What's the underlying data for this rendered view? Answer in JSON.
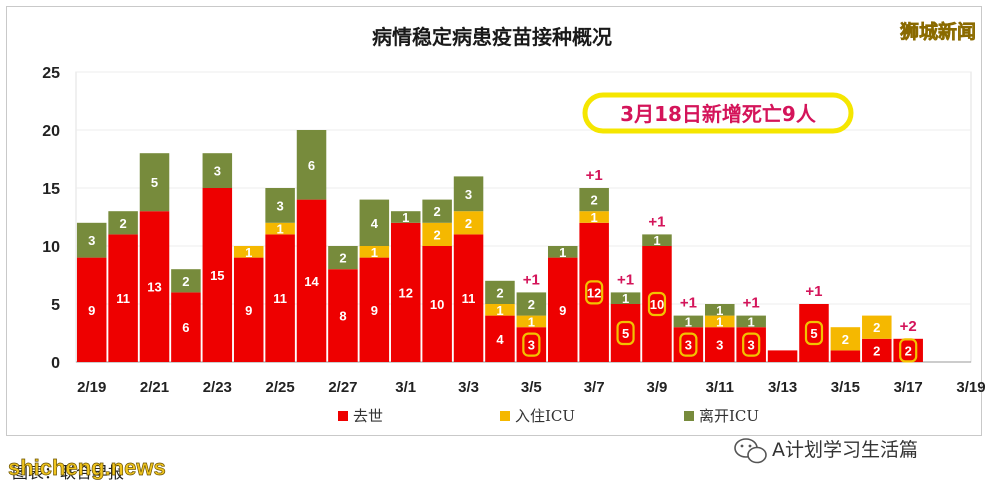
{
  "watermark_top_right": "狮城新闻",
  "callout": "3月18日新增死亡9人",
  "caption": "图表：联合早报",
  "watermark_bottom_left": "shicheng.news",
  "wechat_label": "A计划学习生活篇",
  "wechat_icon": "wechat-icon",
  "colors": {
    "deaths": "#ee0000",
    "admitted": "#f5b800",
    "left_icu": "#778b3c",
    "plus": "#d4145a",
    "circle": "#f2c200"
  },
  "chart_data": {
    "type": "bar",
    "stacked": true,
    "title": "病情稳定病患疫苗接种概况",
    "ylim": [
      0,
      25
    ],
    "yticks": [
      0,
      5,
      10,
      15,
      20,
      25
    ],
    "grid": true,
    "legend_position": "bottom",
    "categories": [
      "2/19",
      "2/20",
      "2/21",
      "2/22",
      "2/23",
      "2/24",
      "2/25",
      "2/26",
      "2/27",
      "2/28",
      "3/1",
      "3/2",
      "3/3",
      "3/4",
      "3/5",
      "3/6",
      "3/7",
      "3/8",
      "3/9",
      "3/10",
      "3/11",
      "3/12",
      "3/13",
      "3/14",
      "3/15",
      "3/16",
      "3/17",
      "3/18",
      "3/19"
    ],
    "tick_labels": [
      "2/19",
      "2/21",
      "2/23",
      "2/25",
      "2/27",
      "3/1",
      "3/3",
      "3/5",
      "3/7",
      "3/9",
      "3/11",
      "3/13",
      "3/15",
      "3/17",
      "3/19"
    ],
    "series": [
      {
        "name": "去世",
        "values": [
          9,
          11,
          13,
          6,
          15,
          9,
          11,
          14,
          8,
          9,
          12,
          10,
          11,
          4,
          3,
          9,
          12,
          5,
          10,
          3,
          3,
          3,
          1,
          5,
          1,
          2,
          2,
          0,
          0
        ]
      },
      {
        "name": "入住ICU",
        "values": [
          0,
          0,
          0,
          0,
          0,
          1,
          1,
          0,
          0,
          1,
          0,
          2,
          2,
          1,
          1,
          0,
          1,
          0,
          0,
          0,
          1,
          0,
          0,
          0,
          2,
          2,
          0,
          0,
          0
        ]
      },
      {
        "name": "离开ICU",
        "values": [
          3,
          2,
          5,
          2,
          3,
          0,
          3,
          6,
          2,
          4,
          1,
          2,
          3,
          2,
          2,
          1,
          2,
          1,
          1,
          1,
          1,
          1,
          0,
          0,
          0,
          0,
          0,
          0,
          0
        ]
      }
    ],
    "labels": {
      "deaths": [
        "9",
        "11",
        "13",
        "6",
        "15",
        "9",
        "11",
        "14",
        "8",
        "9",
        "12",
        "10",
        "11",
        "4",
        "3",
        "9",
        "12",
        "5",
        "10",
        "3",
        "3",
        "3",
        "",
        "5",
        "",
        "2",
        "2",
        "",
        ""
      ],
      "admitted": [
        "",
        "",
        "",
        "",
        "",
        "1",
        "1",
        "",
        "",
        "1",
        "",
        "2",
        "2",
        "1",
        "1",
        "",
        "1",
        "",
        "",
        "",
        "1",
        "",
        "",
        "",
        "2",
        "2",
        "",
        "",
        ""
      ],
      "left_icu": [
        "3",
        "2",
        "5",
        "2",
        "3",
        "",
        "3",
        "6",
        "2",
        "4",
        "1",
        "2",
        "3",
        "2",
        "2",
        "1",
        "2",
        "1",
        "1",
        "1",
        "1",
        "1",
        "",
        "",
        "",
        "",
        "",
        "",
        ""
      ]
    },
    "circled_death_labels": [
      14,
      16,
      17,
      18,
      19,
      21,
      23,
      26
    ],
    "annotations": [
      {
        "index": 14,
        "text": "+1"
      },
      {
        "index": 16,
        "text": "+1"
      },
      {
        "index": 17,
        "text": "+1"
      },
      {
        "index": 18,
        "text": "+1"
      },
      {
        "index": 19,
        "text": "+1"
      },
      {
        "index": 21,
        "text": "+1"
      },
      {
        "index": 23,
        "text": "+1"
      },
      {
        "index": 26,
        "text": "+2"
      }
    ]
  }
}
